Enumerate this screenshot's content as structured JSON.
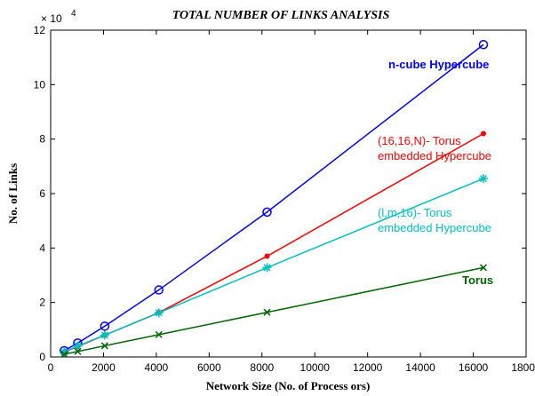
{
  "chart_data": {
    "type": "line",
    "title": "TOTAL NUMBER OF LINKS ANALYSIS",
    "xlabel": "Network Size (No. of Process ors)",
    "ylabel": "No. of Links",
    "xlim": [
      0,
      18000
    ],
    "ylim": [
      0,
      12
    ],
    "y_multiplier_label": "× 10",
    "y_multiplier_exponent": "4",
    "x_ticks": [
      0,
      2000,
      4000,
      6000,
      8000,
      10000,
      12000,
      14000,
      16000,
      18000
    ],
    "y_ticks": [
      0,
      2,
      4,
      6,
      8,
      10,
      12
    ],
    "grid": false,
    "series": [
      {
        "name": "n-cube Hypercube",
        "color": "#0000ff",
        "marker": "circle",
        "x": [
          512,
          1024,
          2048,
          4096,
          8192,
          16384
        ],
        "y": [
          0.23,
          0.51,
          1.13,
          2.46,
          5.32,
          11.47
        ],
        "label_lines": [
          "n-cube Hypercube"
        ]
      },
      {
        "name": "(16,16,N)- Torus embedded Hypercube",
        "color": "#ff0000",
        "marker": "dot",
        "x": [
          512,
          1024,
          2048,
          4096,
          8192,
          16384
        ],
        "y": [
          0.18,
          0.38,
          0.8,
          1.63,
          3.7,
          8.2
        ],
        "label_lines": [
          "(16,16,N)- Torus",
          "embedded Hypercube"
        ]
      },
      {
        "name": "(l,m,16)- Torus embedded Hypercube",
        "color": "#00c0c0",
        "marker": "star",
        "x": [
          512,
          1024,
          2048,
          4096,
          8192,
          16384
        ],
        "y": [
          0.18,
          0.4,
          0.8,
          1.62,
          3.28,
          6.55
        ],
        "label_lines": [
          "(l,m,16)- Torus",
          "embedded Hypercube"
        ]
      },
      {
        "name": "Torus",
        "color": "#006400",
        "marker": "x",
        "x": [
          512,
          1024,
          2048,
          4096,
          8192,
          16384
        ],
        "y": [
          0.1,
          0.2,
          0.41,
          0.82,
          1.64,
          3.28
        ],
        "label_lines": [
          "Torus"
        ]
      }
    ]
  }
}
